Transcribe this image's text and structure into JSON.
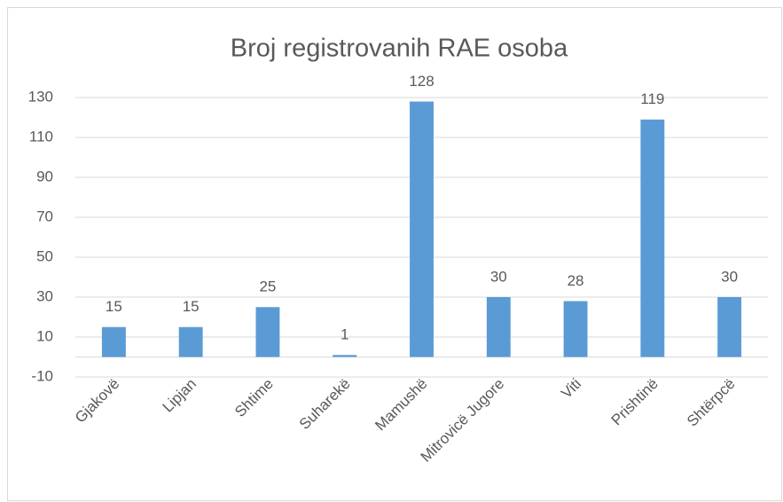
{
  "chart_data": {
    "type": "bar",
    "title": "Broj registrovanih RAE osoba",
    "categories": [
      "Gjakovë",
      "Lipjan",
      "Shtime",
      "Suharekë",
      "Mamushë",
      "Mitrovicë Jugore",
      "Viti",
      "Prishtinë",
      "Shtërpcë"
    ],
    "values": [
      15,
      15,
      25,
      1,
      128,
      30,
      28,
      119,
      30
    ],
    "color": "#5b9bd5",
    "ylim": [
      -10,
      130
    ],
    "yticks": [
      -10,
      10,
      30,
      50,
      70,
      90,
      110,
      130
    ],
    "grid": true
  }
}
